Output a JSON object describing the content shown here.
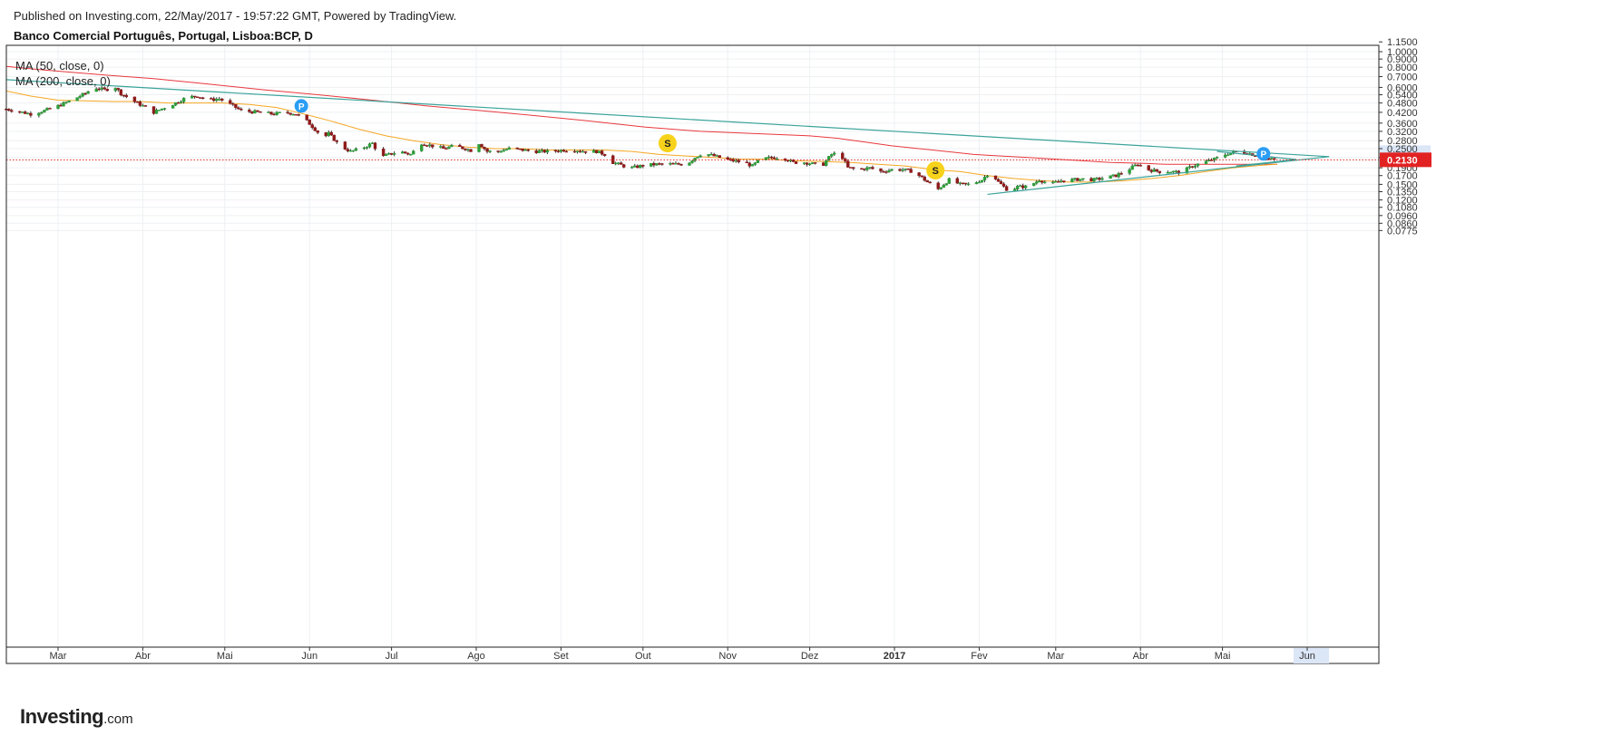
{
  "header": {
    "published": "Published on Investing.com, 22/May/2017 - 19:57:22 GMT, Powered by TradingView.",
    "symbol": "Banco Comercial Português, Portugal, Lisboa:BCP, D"
  },
  "legend": {
    "ma50": "MA (50, close, 0)",
    "ma200": "MA (200, close, 0)"
  },
  "logo": {
    "brand": "Investing",
    "domain": ".com"
  },
  "colors": {
    "up": "#2e9e3a",
    "down": "#8e1a1a",
    "ma50": "#f5a623",
    "ma200": "#e8383d",
    "trend": "#3aa39a",
    "price_line": "#e22222",
    "badge_p": "#2a9df4",
    "badge_s": "#f7d21b",
    "grid": "#eef0f3",
    "axis": "#333333"
  },
  "chart_data": {
    "type": "candlestick",
    "title": "Banco Comercial Português, Portugal, Lisboa:BCP, D",
    "y_scale": "log",
    "ylim": [
      0.0745,
      1.16
    ],
    "x_ticks": [
      {
        "label": "Mar",
        "day": 5
      },
      {
        "label": "Abr",
        "day": 36
      },
      {
        "label": "Mai",
        "day": 66
      },
      {
        "label": "Jun",
        "day": 97
      },
      {
        "label": "Jul",
        "day": 127
      },
      {
        "label": "Ago",
        "day": 158
      },
      {
        "label": "Set",
        "day": 189
      },
      {
        "label": "Out",
        "day": 219
      },
      {
        "label": "Nov",
        "day": 250
      },
      {
        "label": "Dez",
        "day": 280
      },
      {
        "label": "2017",
        "day": 311,
        "bold": true
      },
      {
        "label": "Fev",
        "day": 342
      },
      {
        "label": "Mar",
        "day": 370
      },
      {
        "label": "Abr",
        "day": 401
      },
      {
        "label": "Mai",
        "day": 431
      },
      {
        "label": "Jun",
        "day": 462
      }
    ],
    "y_ticks": [
      "1.1500",
      "1.0000",
      "0.9000",
      "0.8000",
      "0.7000",
      "0.6000",
      "0.5400",
      "0.4800",
      "0.4200",
      "0.3600",
      "0.3200",
      "0.2800",
      "0.2500",
      "0.2200",
      "0.1900",
      "0.1700",
      "0.1500",
      "0.1350",
      "0.1200",
      "0.1080",
      "0.0960",
      "0.0860",
      "0.0775"
    ],
    "last_price": "0.2130",
    "close_path": [
      [
        -14,
        0.44
      ],
      [
        -5,
        0.41
      ],
      [
        0,
        0.43
      ],
      [
        5,
        0.46
      ],
      [
        10,
        0.5
      ],
      [
        15,
        0.55
      ],
      [
        18,
        0.6
      ],
      [
        22,
        0.58
      ],
      [
        26,
        0.6
      ],
      [
        28,
        0.55
      ],
      [
        32,
        0.5
      ],
      [
        36,
        0.46
      ],
      [
        40,
        0.42
      ],
      [
        44,
        0.45
      ],
      [
        48,
        0.48
      ],
      [
        52,
        0.52
      ],
      [
        56,
        0.53
      ],
      [
        60,
        0.5
      ],
      [
        64,
        0.51
      ],
      [
        67,
        0.48
      ],
      [
        72,
        0.43
      ],
      [
        78,
        0.42
      ],
      [
        84,
        0.41
      ],
      [
        88,
        0.42
      ],
      [
        92,
        0.41
      ],
      [
        96,
        0.37
      ],
      [
        99,
        0.33
      ],
      [
        102,
        0.29
      ],
      [
        104,
        0.31
      ],
      [
        108,
        0.26
      ],
      [
        112,
        0.24
      ],
      [
        116,
        0.25
      ],
      [
        120,
        0.27
      ],
      [
        123,
        0.22
      ],
      [
        126,
        0.23
      ],
      [
        130,
        0.24
      ],
      [
        134,
        0.23
      ],
      [
        138,
        0.27
      ],
      [
        142,
        0.26
      ],
      [
        146,
        0.25
      ],
      [
        150,
        0.26
      ],
      [
        154,
        0.25
      ],
      [
        157,
        0.24
      ],
      [
        159,
        0.27
      ],
      [
        162,
        0.24
      ],
      [
        166,
        0.24
      ],
      [
        170,
        0.25
      ],
      [
        175,
        0.245
      ],
      [
        180,
        0.24
      ],
      [
        185,
        0.24
      ],
      [
        190,
        0.245
      ],
      [
        194,
        0.245
      ],
      [
        198,
        0.24
      ],
      [
        202,
        0.24
      ],
      [
        205,
        0.23
      ],
      [
        208,
        0.205
      ],
      [
        212,
        0.195
      ],
      [
        215,
        0.19
      ],
      [
        220,
        0.198
      ],
      [
        225,
        0.2
      ],
      [
        230,
        0.2
      ],
      [
        235,
        0.2
      ],
      [
        238,
        0.22
      ],
      [
        241,
        0.235
      ],
      [
        245,
        0.225
      ],
      [
        249,
        0.215
      ],
      [
        252,
        0.21
      ],
      [
        256,
        0.205
      ],
      [
        259,
        0.195
      ],
      [
        262,
        0.215
      ],
      [
        266,
        0.22
      ],
      [
        270,
        0.22
      ],
      [
        274,
        0.205
      ],
      [
        278,
        0.205
      ],
      [
        282,
        0.2
      ],
      [
        285,
        0.2
      ],
      [
        288,
        0.23
      ],
      [
        291,
        0.235
      ],
      [
        294,
        0.19
      ],
      [
        298,
        0.185
      ],
      [
        302,
        0.19
      ],
      [
        306,
        0.18
      ],
      [
        310,
        0.185
      ],
      [
        314,
        0.185
      ],
      [
        318,
        0.18
      ],
      [
        323,
        0.155
      ],
      [
        327,
        0.14
      ],
      [
        331,
        0.16
      ],
      [
        335,
        0.15
      ],
      [
        339,
        0.15
      ],
      [
        343,
        0.16
      ],
      [
        346,
        0.18
      ],
      [
        349,
        0.155
      ],
      [
        353,
        0.135
      ],
      [
        356,
        0.145
      ],
      [
        360,
        0.145
      ],
      [
        364,
        0.16
      ],
      [
        368,
        0.15
      ],
      [
        372,
        0.158
      ],
      [
        376,
        0.16
      ],
      [
        380,
        0.162
      ],
      [
        384,
        0.16
      ],
      [
        388,
        0.165
      ],
      [
        392,
        0.17
      ],
      [
        396,
        0.183
      ],
      [
        400,
        0.2
      ],
      [
        404,
        0.185
      ],
      [
        408,
        0.18
      ],
      [
        412,
        0.18
      ],
      [
        416,
        0.178
      ],
      [
        420,
        0.195
      ],
      [
        424,
        0.205
      ],
      [
        428,
        0.215
      ],
      [
        432,
        0.23
      ],
      [
        436,
        0.24
      ],
      [
        440,
        0.235
      ],
      [
        444,
        0.225
      ],
      [
        448,
        0.215
      ],
      [
        452,
        0.213
      ]
    ],
    "ma50_path": [
      [
        -14,
        0.57
      ],
      [
        -5,
        0.53
      ],
      [
        5,
        0.5
      ],
      [
        15,
        0.495
      ],
      [
        25,
        0.49
      ],
      [
        35,
        0.49
      ],
      [
        45,
        0.48
      ],
      [
        55,
        0.48
      ],
      [
        65,
        0.48
      ],
      [
        75,
        0.47
      ],
      [
        85,
        0.45
      ],
      [
        95,
        0.41
      ],
      [
        105,
        0.37
      ],
      [
        115,
        0.33
      ],
      [
        125,
        0.3
      ],
      [
        135,
        0.28
      ],
      [
        145,
        0.265
      ],
      [
        155,
        0.255
      ],
      [
        165,
        0.25
      ],
      [
        175,
        0.25
      ],
      [
        185,
        0.245
      ],
      [
        195,
        0.245
      ],
      [
        205,
        0.245
      ],
      [
        215,
        0.24
      ],
      [
        225,
        0.23
      ],
      [
        235,
        0.225
      ],
      [
        245,
        0.22
      ],
      [
        255,
        0.215
      ],
      [
        265,
        0.215
      ],
      [
        275,
        0.21
      ],
      [
        285,
        0.208
      ],
      [
        295,
        0.205
      ],
      [
        305,
        0.2
      ],
      [
        315,
        0.195
      ],
      [
        325,
        0.185
      ],
      [
        335,
        0.18
      ],
      [
        345,
        0.17
      ],
      [
        355,
        0.163
      ],
      [
        365,
        0.158
      ],
      [
        375,
        0.155
      ],
      [
        385,
        0.155
      ],
      [
        395,
        0.158
      ],
      [
        405,
        0.163
      ],
      [
        415,
        0.17
      ],
      [
        425,
        0.18
      ],
      [
        435,
        0.19
      ],
      [
        445,
        0.197
      ],
      [
        451,
        0.2
      ]
    ],
    "ma200_path": [
      [
        -14,
        0.81
      ],
      [
        0,
        0.77
      ],
      [
        20,
        0.72
      ],
      [
        40,
        0.68
      ],
      [
        60,
        0.63
      ],
      [
        80,
        0.58
      ],
      [
        100,
        0.54
      ],
      [
        120,
        0.5
      ],
      [
        140,
        0.46
      ],
      [
        160,
        0.43
      ],
      [
        180,
        0.4
      ],
      [
        200,
        0.37
      ],
      [
        220,
        0.34
      ],
      [
        240,
        0.32
      ],
      [
        260,
        0.31
      ],
      [
        280,
        0.3
      ],
      [
        290,
        0.29
      ],
      [
        300,
        0.275
      ],
      [
        310,
        0.26
      ],
      [
        320,
        0.25
      ],
      [
        330,
        0.24
      ],
      [
        340,
        0.23
      ],
      [
        350,
        0.225
      ],
      [
        360,
        0.22
      ],
      [
        370,
        0.215
      ],
      [
        380,
        0.21
      ],
      [
        390,
        0.205
      ],
      [
        400,
        0.203
      ],
      [
        410,
        0.2
      ],
      [
        420,
        0.2
      ],
      [
        430,
        0.2
      ],
      [
        440,
        0.2
      ],
      [
        451,
        0.2
      ]
    ],
    "trendlines": [
      {
        "from": [
          -14,
          0.67
        ],
        "to": [
          470,
          0.223
        ]
      },
      {
        "from": [
          345,
          0.13
        ],
        "to": [
          470,
          0.223
        ]
      },
      {
        "from": [
          429,
          0.24
        ],
        "to": [
          458,
          0.214
        ]
      },
      {
        "from": [
          436,
          0.195
        ],
        "to": [
          458,
          0.214
        ]
      }
    ],
    "events": [
      {
        "label": "P",
        "kind": "dividend",
        "day": 94,
        "price": 0.46
      },
      {
        "label": "S",
        "kind": "split",
        "day": 228,
        "price": 0.27
      },
      {
        "label": "S",
        "kind": "split",
        "day": 326,
        "price": 0.183
      },
      {
        "label": "P",
        "kind": "dividend",
        "day": 446,
        "price": 0.232
      }
    ]
  }
}
